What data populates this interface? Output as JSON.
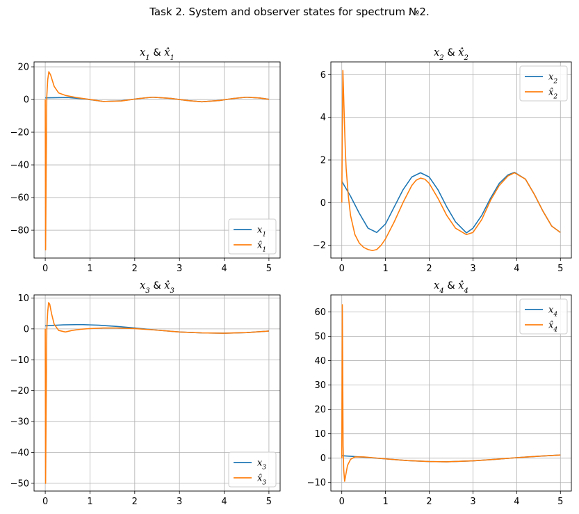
{
  "figure": {
    "title": "Task 2. System and observer states for spectrum №2."
  },
  "colors": {
    "system": "#1f77b4",
    "observer": "#ff7f0e",
    "grid": "#b0b0b0"
  },
  "chart_data": [
    {
      "type": "line",
      "title": {
        "var": "x",
        "sub": "1",
        "amp": " & "
      },
      "xlim": [
        -0.25,
        5.25
      ],
      "ylim": [
        -97,
        23
      ],
      "xticks": [
        0,
        1,
        2,
        3,
        4,
        5
      ],
      "yticks": [
        20,
        0,
        -20,
        -40,
        -60,
        -80
      ],
      "grid": true,
      "legend": "lower right",
      "series": [
        {
          "name": "x1",
          "label": {
            "var": "x",
            "sub": "1",
            "hat": false
          },
          "x": [
            0,
            0.5,
            0.9,
            1.3,
            1.7,
            2.1,
            2.4,
            2.8,
            3.2,
            3.5,
            3.9,
            4.2,
            4.5,
            4.8,
            5.0
          ],
          "y": [
            1.0,
            1.2,
            0.3,
            -1.2,
            -0.8,
            0.6,
            1.4,
            0.7,
            -0.7,
            -1.4,
            -0.6,
            0.6,
            1.4,
            0.9,
            0.1
          ]
        },
        {
          "name": "x1_hat",
          "label": {
            "var": "x",
            "sub": "1",
            "hat": true
          },
          "x": [
            0,
            0.008,
            0.02,
            0.035,
            0.055,
            0.08,
            0.12,
            0.2,
            0.3,
            0.45,
            0.7,
            1.0,
            1.3,
            1.7,
            2.1,
            2.4,
            2.8,
            3.2,
            3.5,
            3.9,
            4.2,
            4.5,
            4.8,
            5.0
          ],
          "y": [
            0,
            -92,
            -45,
            2,
            12,
            17,
            15,
            8,
            4,
            2.5,
            1.2,
            0.0,
            -1.2,
            -0.9,
            0.6,
            1.4,
            0.7,
            -0.7,
            -1.4,
            -0.6,
            0.6,
            1.4,
            0.9,
            0.1
          ]
        }
      ]
    },
    {
      "type": "line",
      "title": {
        "var": "x",
        "sub": "2",
        "amp": " & "
      },
      "xlim": [
        -0.25,
        5.25
      ],
      "ylim": [
        -2.6,
        6.6
      ],
      "xticks": [
        0,
        1,
        2,
        3,
        4,
        5
      ],
      "yticks": [
        6,
        4,
        2,
        0,
        -2
      ],
      "grid": true,
      "legend": "upper right",
      "series": [
        {
          "name": "x2",
          "label": {
            "var": "x",
            "sub": "2",
            "hat": false
          },
          "x": [
            0,
            0.2,
            0.4,
            0.6,
            0.8,
            1.0,
            1.2,
            1.4,
            1.6,
            1.8,
            2.0,
            2.2,
            2.4,
            2.6,
            2.85,
            3.0,
            3.2,
            3.4,
            3.6,
            3.8,
            3.95,
            4.2,
            4.4,
            4.6,
            4.8,
            5.0
          ],
          "y": [
            1.0,
            0.3,
            -0.5,
            -1.2,
            -1.4,
            -1.0,
            -0.2,
            0.6,
            1.2,
            1.4,
            1.2,
            0.6,
            -0.2,
            -0.9,
            -1.42,
            -1.2,
            -0.6,
            0.2,
            0.9,
            1.3,
            1.42,
            1.1,
            0.4,
            -0.4,
            -1.1,
            -1.4
          ]
        },
        {
          "name": "x2_hat",
          "label": {
            "var": "x",
            "sub": "2",
            "hat": true
          },
          "x": [
            0,
            0.01,
            0.025,
            0.04,
            0.06,
            0.08,
            0.1,
            0.15,
            0.2,
            0.3,
            0.4,
            0.5,
            0.6,
            0.7,
            0.8,
            0.9,
            1.0,
            1.2,
            1.4,
            1.6,
            1.7,
            1.8,
            1.9,
            2.0,
            2.2,
            2.4,
            2.6,
            2.85,
            3.0,
            3.2,
            3.4,
            3.6,
            3.8,
            3.95,
            4.2,
            4.4,
            4.6,
            4.8,
            5.0
          ],
          "y": [
            0,
            3.0,
            6.2,
            5.2,
            3.8,
            2.5,
            1.6,
            0.3,
            -0.6,
            -1.5,
            -1.9,
            -2.1,
            -2.2,
            -2.25,
            -2.2,
            -2.0,
            -1.7,
            -0.9,
            0.0,
            0.8,
            1.05,
            1.15,
            1.1,
            0.9,
            0.2,
            -0.6,
            -1.2,
            -1.5,
            -1.4,
            -0.8,
            0.1,
            0.8,
            1.25,
            1.4,
            1.1,
            0.4,
            -0.4,
            -1.1,
            -1.4
          ]
        }
      ]
    },
    {
      "type": "line",
      "title": {
        "var": "x",
        "sub": "3",
        "amp": " & "
      },
      "xlim": [
        -0.25,
        5.25
      ],
      "ylim": [
        -52.5,
        11
      ],
      "xticks": [
        0,
        1,
        2,
        3,
        4,
        5
      ],
      "yticks": [
        10,
        0,
        -10,
        -20,
        -30,
        -40,
        -50
      ],
      "grid": true,
      "legend": "lower right",
      "series": [
        {
          "name": "x3",
          "label": {
            "var": "x",
            "sub": "3",
            "hat": false
          },
          "x": [
            0,
            0.4,
            0.8,
            1.2,
            1.6,
            2.0,
            2.5,
            3.0,
            3.5,
            4.0,
            4.5,
            5.0
          ],
          "y": [
            1.0,
            1.3,
            1.4,
            1.2,
            0.8,
            0.3,
            -0.4,
            -1.0,
            -1.3,
            -1.4,
            -1.2,
            -0.7
          ]
        },
        {
          "name": "x3_hat",
          "label": {
            "var": "x",
            "sub": "3",
            "hat": true
          },
          "x": [
            0,
            0.008,
            0.02,
            0.035,
            0.055,
            0.075,
            0.1,
            0.14,
            0.2,
            0.3,
            0.45,
            0.6,
            0.8,
            1.0,
            1.3,
            1.6,
            2.0,
            2.5,
            3.0,
            3.5,
            4.0,
            4.5,
            5.0
          ],
          "y": [
            0,
            -50,
            -25,
            0,
            5.5,
            8.5,
            8,
            5,
            1.5,
            -0.5,
            -1.0,
            -0.5,
            -0.1,
            0.1,
            0.3,
            0.3,
            0.1,
            -0.4,
            -1.0,
            -1.3,
            -1.4,
            -1.2,
            -0.7
          ]
        }
      ]
    },
    {
      "type": "line",
      "title": {
        "var": "x",
        "sub": "4",
        "amp": " & "
      },
      "xlim": [
        -0.25,
        5.25
      ],
      "ylim": [
        -13.5,
        67
      ],
      "xticks": [
        0,
        1,
        2,
        3,
        4,
        5
      ],
      "yticks": [
        60,
        50,
        40,
        30,
        20,
        10,
        0,
        -10
      ],
      "grid": true,
      "legend": "upper right",
      "series": [
        {
          "name": "x4",
          "label": {
            "var": "x",
            "sub": "4",
            "hat": false
          },
          "x": [
            0,
            0.5,
            1.0,
            1.5,
            2.0,
            2.4,
            3.0,
            3.5,
            4.0,
            4.5,
            5.0
          ],
          "y": [
            1.0,
            0.4,
            -0.3,
            -1.0,
            -1.4,
            -1.5,
            -1.1,
            -0.5,
            0.2,
            0.8,
            1.3
          ]
        },
        {
          "name": "x4_hat",
          "label": {
            "var": "x",
            "sub": "4",
            "hat": true
          },
          "x": [
            0,
            0.006,
            0.012,
            0.02,
            0.03,
            0.045,
            0.065,
            0.09,
            0.13,
            0.2,
            0.3,
            0.5,
            0.7,
            1.0,
            1.5,
            2.0,
            2.4,
            3.0,
            3.5,
            4.0,
            4.5,
            5.0
          ],
          "y": [
            0,
            30,
            63,
            40,
            5,
            -5,
            -9.5,
            -7,
            -3,
            -0.5,
            0.5,
            0.5,
            0.2,
            -0.3,
            -1.0,
            -1.4,
            -1.5,
            -1.1,
            -0.5,
            0.2,
            0.8,
            1.3
          ]
        }
      ]
    }
  ]
}
